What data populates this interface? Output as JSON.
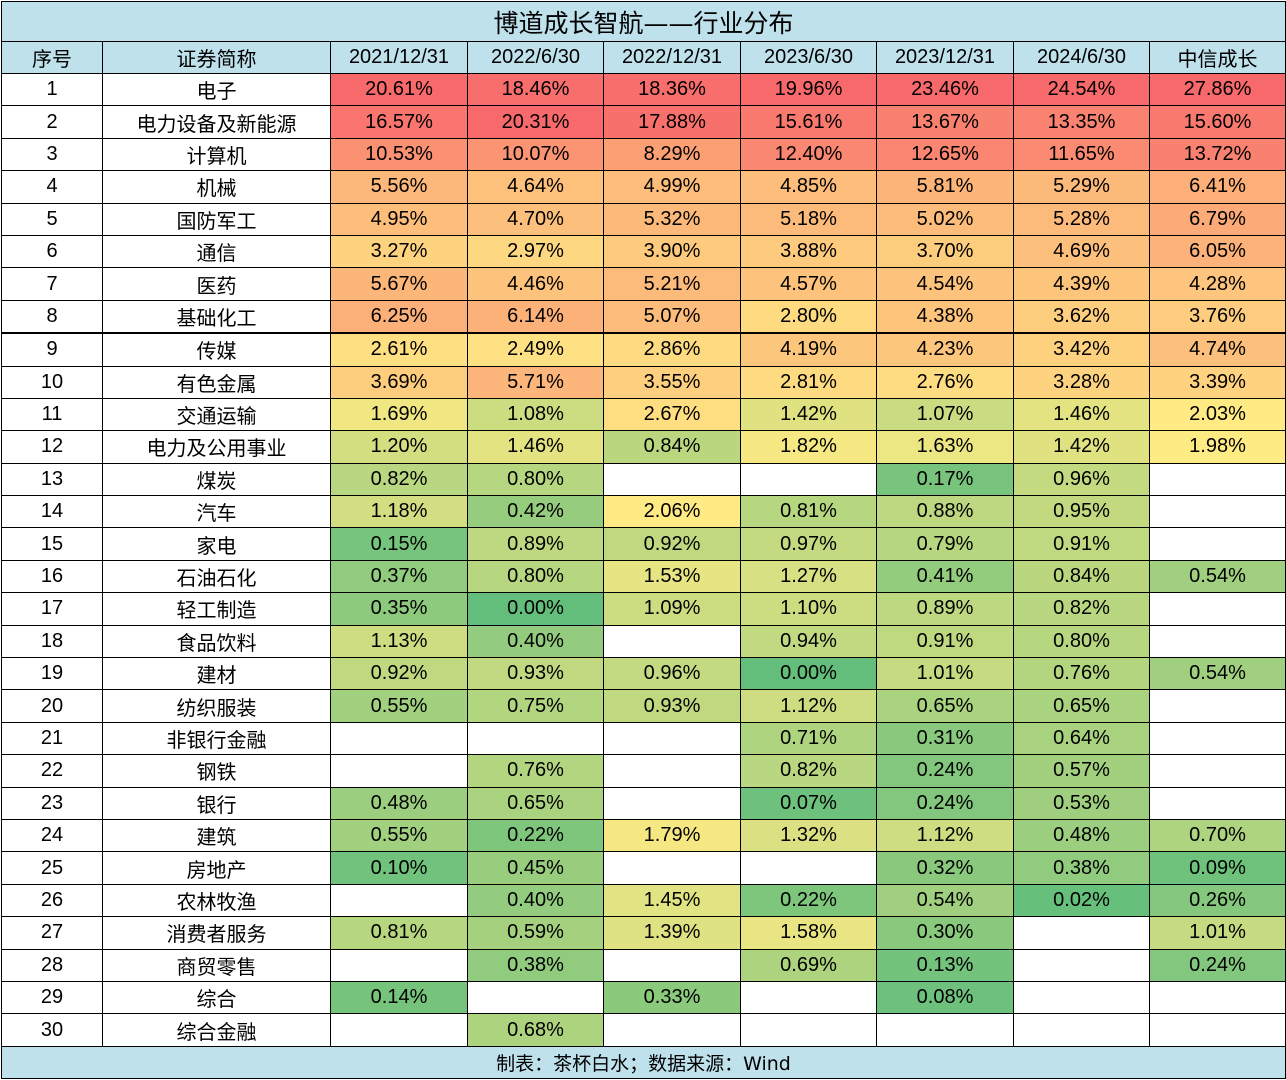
{
  "title": "博道成长智航——行业分布",
  "headers": [
    "序号",
    "证券简称",
    "2021/12/31",
    "2022/6/30",
    "2022/12/31",
    "2023/6/30",
    "2023/12/31",
    "2024/6/30",
    "中信成长"
  ],
  "rows": [
    {
      "no": "1",
      "name": "电子",
      "values": [
        "20.61%",
        "18.46%",
        "18.36%",
        "19.96%",
        "23.46%",
        "24.54%",
        "27.86%"
      ]
    },
    {
      "no": "2",
      "name": "电力设备及新能源",
      "values": [
        "16.57%",
        "20.31%",
        "17.88%",
        "15.61%",
        "13.67%",
        "13.35%",
        "15.60%"
      ]
    },
    {
      "no": "3",
      "name": "计算机",
      "values": [
        "10.53%",
        "10.07%",
        "8.29%",
        "12.40%",
        "12.65%",
        "11.65%",
        "13.72%"
      ]
    },
    {
      "no": "4",
      "name": "机械",
      "values": [
        "5.56%",
        "4.64%",
        "4.99%",
        "4.85%",
        "5.81%",
        "5.29%",
        "6.41%"
      ]
    },
    {
      "no": "5",
      "name": "国防军工",
      "values": [
        "4.95%",
        "4.70%",
        "5.32%",
        "5.18%",
        "5.02%",
        "5.28%",
        "6.79%"
      ]
    },
    {
      "no": "6",
      "name": "通信",
      "values": [
        "3.27%",
        "2.97%",
        "3.90%",
        "3.88%",
        "3.70%",
        "4.69%",
        "6.05%"
      ]
    },
    {
      "no": "7",
      "name": "医药",
      "values": [
        "5.67%",
        "4.46%",
        "5.21%",
        "4.57%",
        "4.54%",
        "4.39%",
        "4.28%"
      ]
    },
    {
      "no": "8",
      "name": "基础化工",
      "values": [
        "6.25%",
        "6.14%",
        "5.07%",
        "2.80%",
        "4.38%",
        "3.62%",
        "3.76%"
      ]
    },
    {
      "no": "9",
      "name": "传媒",
      "values": [
        "2.61%",
        "2.49%",
        "2.86%",
        "4.19%",
        "4.23%",
        "3.42%",
        "4.74%"
      ]
    },
    {
      "no": "10",
      "name": "有色金属",
      "values": [
        "3.69%",
        "5.71%",
        "3.55%",
        "2.81%",
        "2.76%",
        "3.28%",
        "3.39%"
      ]
    },
    {
      "no": "11",
      "name": "交通运输",
      "values": [
        "1.69%",
        "1.08%",
        "2.67%",
        "1.42%",
        "1.07%",
        "1.46%",
        "2.03%"
      ]
    },
    {
      "no": "12",
      "name": "电力及公用事业",
      "values": [
        "1.20%",
        "1.46%",
        "0.84%",
        "1.82%",
        "1.63%",
        "1.42%",
        "1.98%"
      ]
    },
    {
      "no": "13",
      "name": "煤炭",
      "values": [
        "0.82%",
        "0.80%",
        "",
        "",
        "0.17%",
        "0.96%",
        ""
      ]
    },
    {
      "no": "14",
      "name": "汽车",
      "values": [
        "1.18%",
        "0.42%",
        "2.06%",
        "0.81%",
        "0.88%",
        "0.95%",
        ""
      ]
    },
    {
      "no": "15",
      "name": "家电",
      "values": [
        "0.15%",
        "0.89%",
        "0.92%",
        "0.97%",
        "0.79%",
        "0.91%",
        ""
      ]
    },
    {
      "no": "16",
      "name": "石油石化",
      "values": [
        "0.37%",
        "0.80%",
        "1.53%",
        "1.27%",
        "0.41%",
        "0.84%",
        "0.54%"
      ]
    },
    {
      "no": "17",
      "name": "轻工制造",
      "values": [
        "0.35%",
        "0.00%",
        "1.09%",
        "1.10%",
        "0.89%",
        "0.82%",
        ""
      ]
    },
    {
      "no": "18",
      "name": "食品饮料",
      "values": [
        "1.13%",
        "0.40%",
        "",
        "0.94%",
        "0.91%",
        "0.80%",
        ""
      ]
    },
    {
      "no": "19",
      "name": "建材",
      "values": [
        "0.92%",
        "0.93%",
        "0.96%",
        "0.00%",
        "1.01%",
        "0.76%",
        "0.54%"
      ]
    },
    {
      "no": "20",
      "name": "纺织服装",
      "values": [
        "0.55%",
        "0.75%",
        "0.93%",
        "1.12%",
        "0.65%",
        "0.65%",
        ""
      ]
    },
    {
      "no": "21",
      "name": "非银行金融",
      "values": [
        "",
        "",
        "",
        "0.71%",
        "0.31%",
        "0.64%",
        ""
      ]
    },
    {
      "no": "22",
      "name": "钢铁",
      "values": [
        "",
        "0.76%",
        "",
        "0.82%",
        "0.24%",
        "0.57%",
        ""
      ]
    },
    {
      "no": "23",
      "name": "银行",
      "values": [
        "0.48%",
        "0.65%",
        "",
        "0.07%",
        "0.24%",
        "0.53%",
        ""
      ]
    },
    {
      "no": "24",
      "name": "建筑",
      "values": [
        "0.55%",
        "0.22%",
        "1.79%",
        "1.32%",
        "1.12%",
        "0.48%",
        "0.70%"
      ]
    },
    {
      "no": "25",
      "name": "房地产",
      "values": [
        "0.10%",
        "0.45%",
        "",
        "",
        "0.32%",
        "0.38%",
        "0.09%"
      ]
    },
    {
      "no": "26",
      "name": "农林牧渔",
      "values": [
        "",
        "0.40%",
        "1.45%",
        "0.22%",
        "0.54%",
        "0.02%",
        "0.26%"
      ]
    },
    {
      "no": "27",
      "name": "消费者服务",
      "values": [
        "0.81%",
        "0.59%",
        "1.39%",
        "1.58%",
        "0.30%",
        "",
        "1.01%"
      ]
    },
    {
      "no": "28",
      "name": "商贸零售",
      "values": [
        "",
        "0.38%",
        "",
        "0.69%",
        "0.13%",
        "",
        "0.24%"
      ]
    },
    {
      "no": "29",
      "name": "综合",
      "values": [
        "0.14%",
        "",
        "0.33%",
        "",
        "0.08%",
        "",
        ""
      ]
    },
    {
      "no": "30",
      "name": "综合金融",
      "values": [
        "",
        "0.68%",
        "",
        "",
        "",
        "",
        ""
      ]
    }
  ],
  "footer": "制表：茶杯白水；数据来源：Wind",
  "colors": {
    "header_bg": "#bfe1ec",
    "scale_low": "#63be7b",
    "scale_mid": "#ffeb84",
    "scale_high": "#f8696b",
    "empty": "#ffffff"
  }
}
